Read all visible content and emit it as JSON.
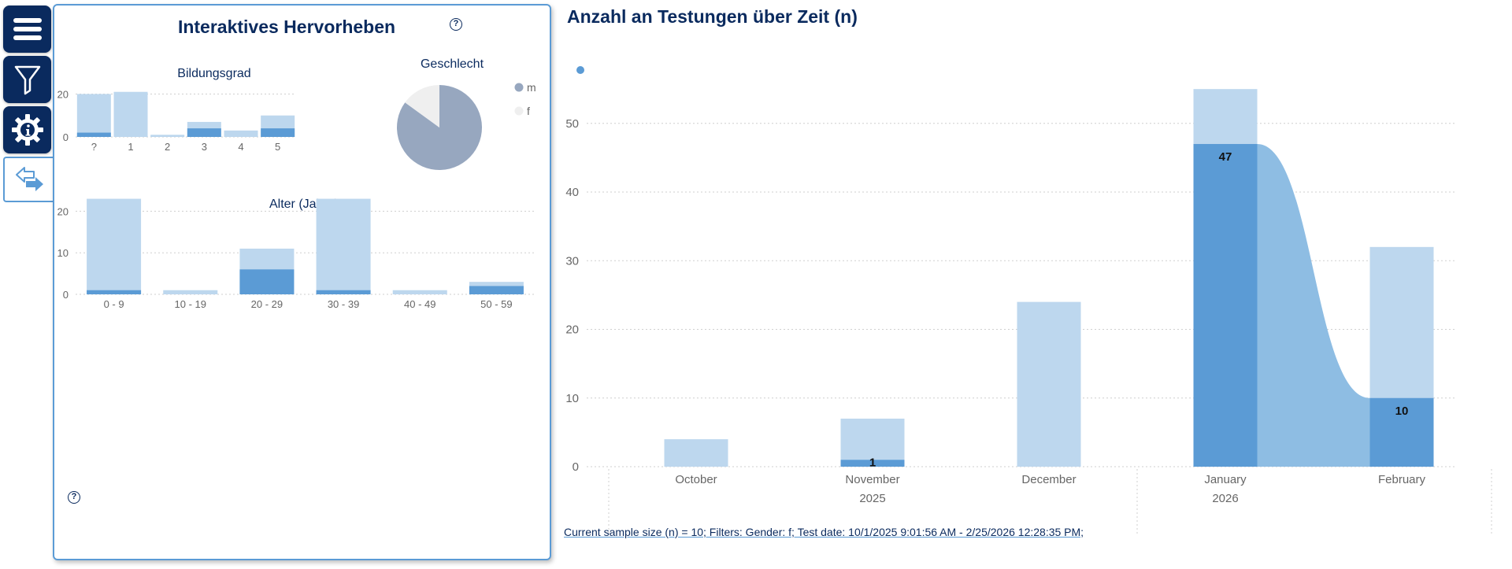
{
  "colors": {
    "navy": "#0a2a5e",
    "light_bar": "#bdd7ee",
    "dark_bar": "#5b9bd5",
    "pie_m": "#97a7bf",
    "pie_f": "#efefef",
    "ribbon": "#8ebde3"
  },
  "rail": {
    "buttons": [
      {
        "icon": "menu-icon"
      },
      {
        "icon": "filter-icon"
      },
      {
        "icon": "settings-info-icon"
      }
    ],
    "toggle_icon": "swap-arrows-icon"
  },
  "panel": {
    "title": "Interaktives Hervorheben",
    "help_symbol": "?"
  },
  "main": {
    "title": "Anzahl an Testungen über Zeit (n)",
    "footer": "Current sample size (n) = 10; Filters: Gender: f; Test date: 10/1/2025 9:01:56 AM - 2/25/2026 12:28:35 PM;"
  },
  "chart_data": [
    {
      "id": "bildungsgrad",
      "type": "bar",
      "title": "Bildungsgrad",
      "categories": [
        "?",
        "1",
        "2",
        "3",
        "4",
        "5"
      ],
      "series": [
        {
          "name": "total",
          "values": [
            20,
            21,
            1,
            7,
            3,
            10
          ]
        },
        {
          "name": "highlighted",
          "values": [
            2,
            0,
            0,
            4,
            0,
            4
          ]
        }
      ],
      "yticks": [
        0,
        20
      ],
      "ylim": [
        0,
        22
      ]
    },
    {
      "id": "geschlecht",
      "type": "pie",
      "title": "Geschlecht",
      "labels": [
        "m",
        "f"
      ],
      "values": [
        85,
        15
      ]
    },
    {
      "id": "alter",
      "type": "bar",
      "title": "Alter (Jahre)",
      "categories": [
        "0 - 9",
        "10 - 19",
        "20 - 29",
        "30 - 39",
        "40 - 49",
        "50 - 59"
      ],
      "series": [
        {
          "name": "total",
          "values": [
            23,
            1,
            11,
            23,
            1,
            3
          ]
        },
        {
          "name": "highlighted",
          "values": [
            1,
            0,
            6,
            1,
            0,
            2
          ]
        }
      ],
      "yticks": [
        0,
        10,
        20
      ],
      "ylim": [
        0,
        25
      ]
    },
    {
      "id": "testungen",
      "type": "bar",
      "title": "Anzahl an Testungen über Zeit (n)",
      "categories": [
        "October",
        "November",
        "December",
        "January",
        "February"
      ],
      "year_labels": [
        {
          "label": "2025",
          "under": "November"
        },
        {
          "label": "2026",
          "under": "January"
        }
      ],
      "series": [
        {
          "name": "total",
          "values": [
            4,
            7,
            24,
            55,
            32
          ]
        },
        {
          "name": "highlighted",
          "values": [
            0,
            1,
            0,
            47,
            10
          ]
        }
      ],
      "data_labels": [
        "",
        "1",
        "",
        "47",
        "10"
      ],
      "yticks": [
        0,
        10,
        20,
        30,
        40,
        50
      ],
      "ylim": [
        0,
        58
      ]
    }
  ]
}
